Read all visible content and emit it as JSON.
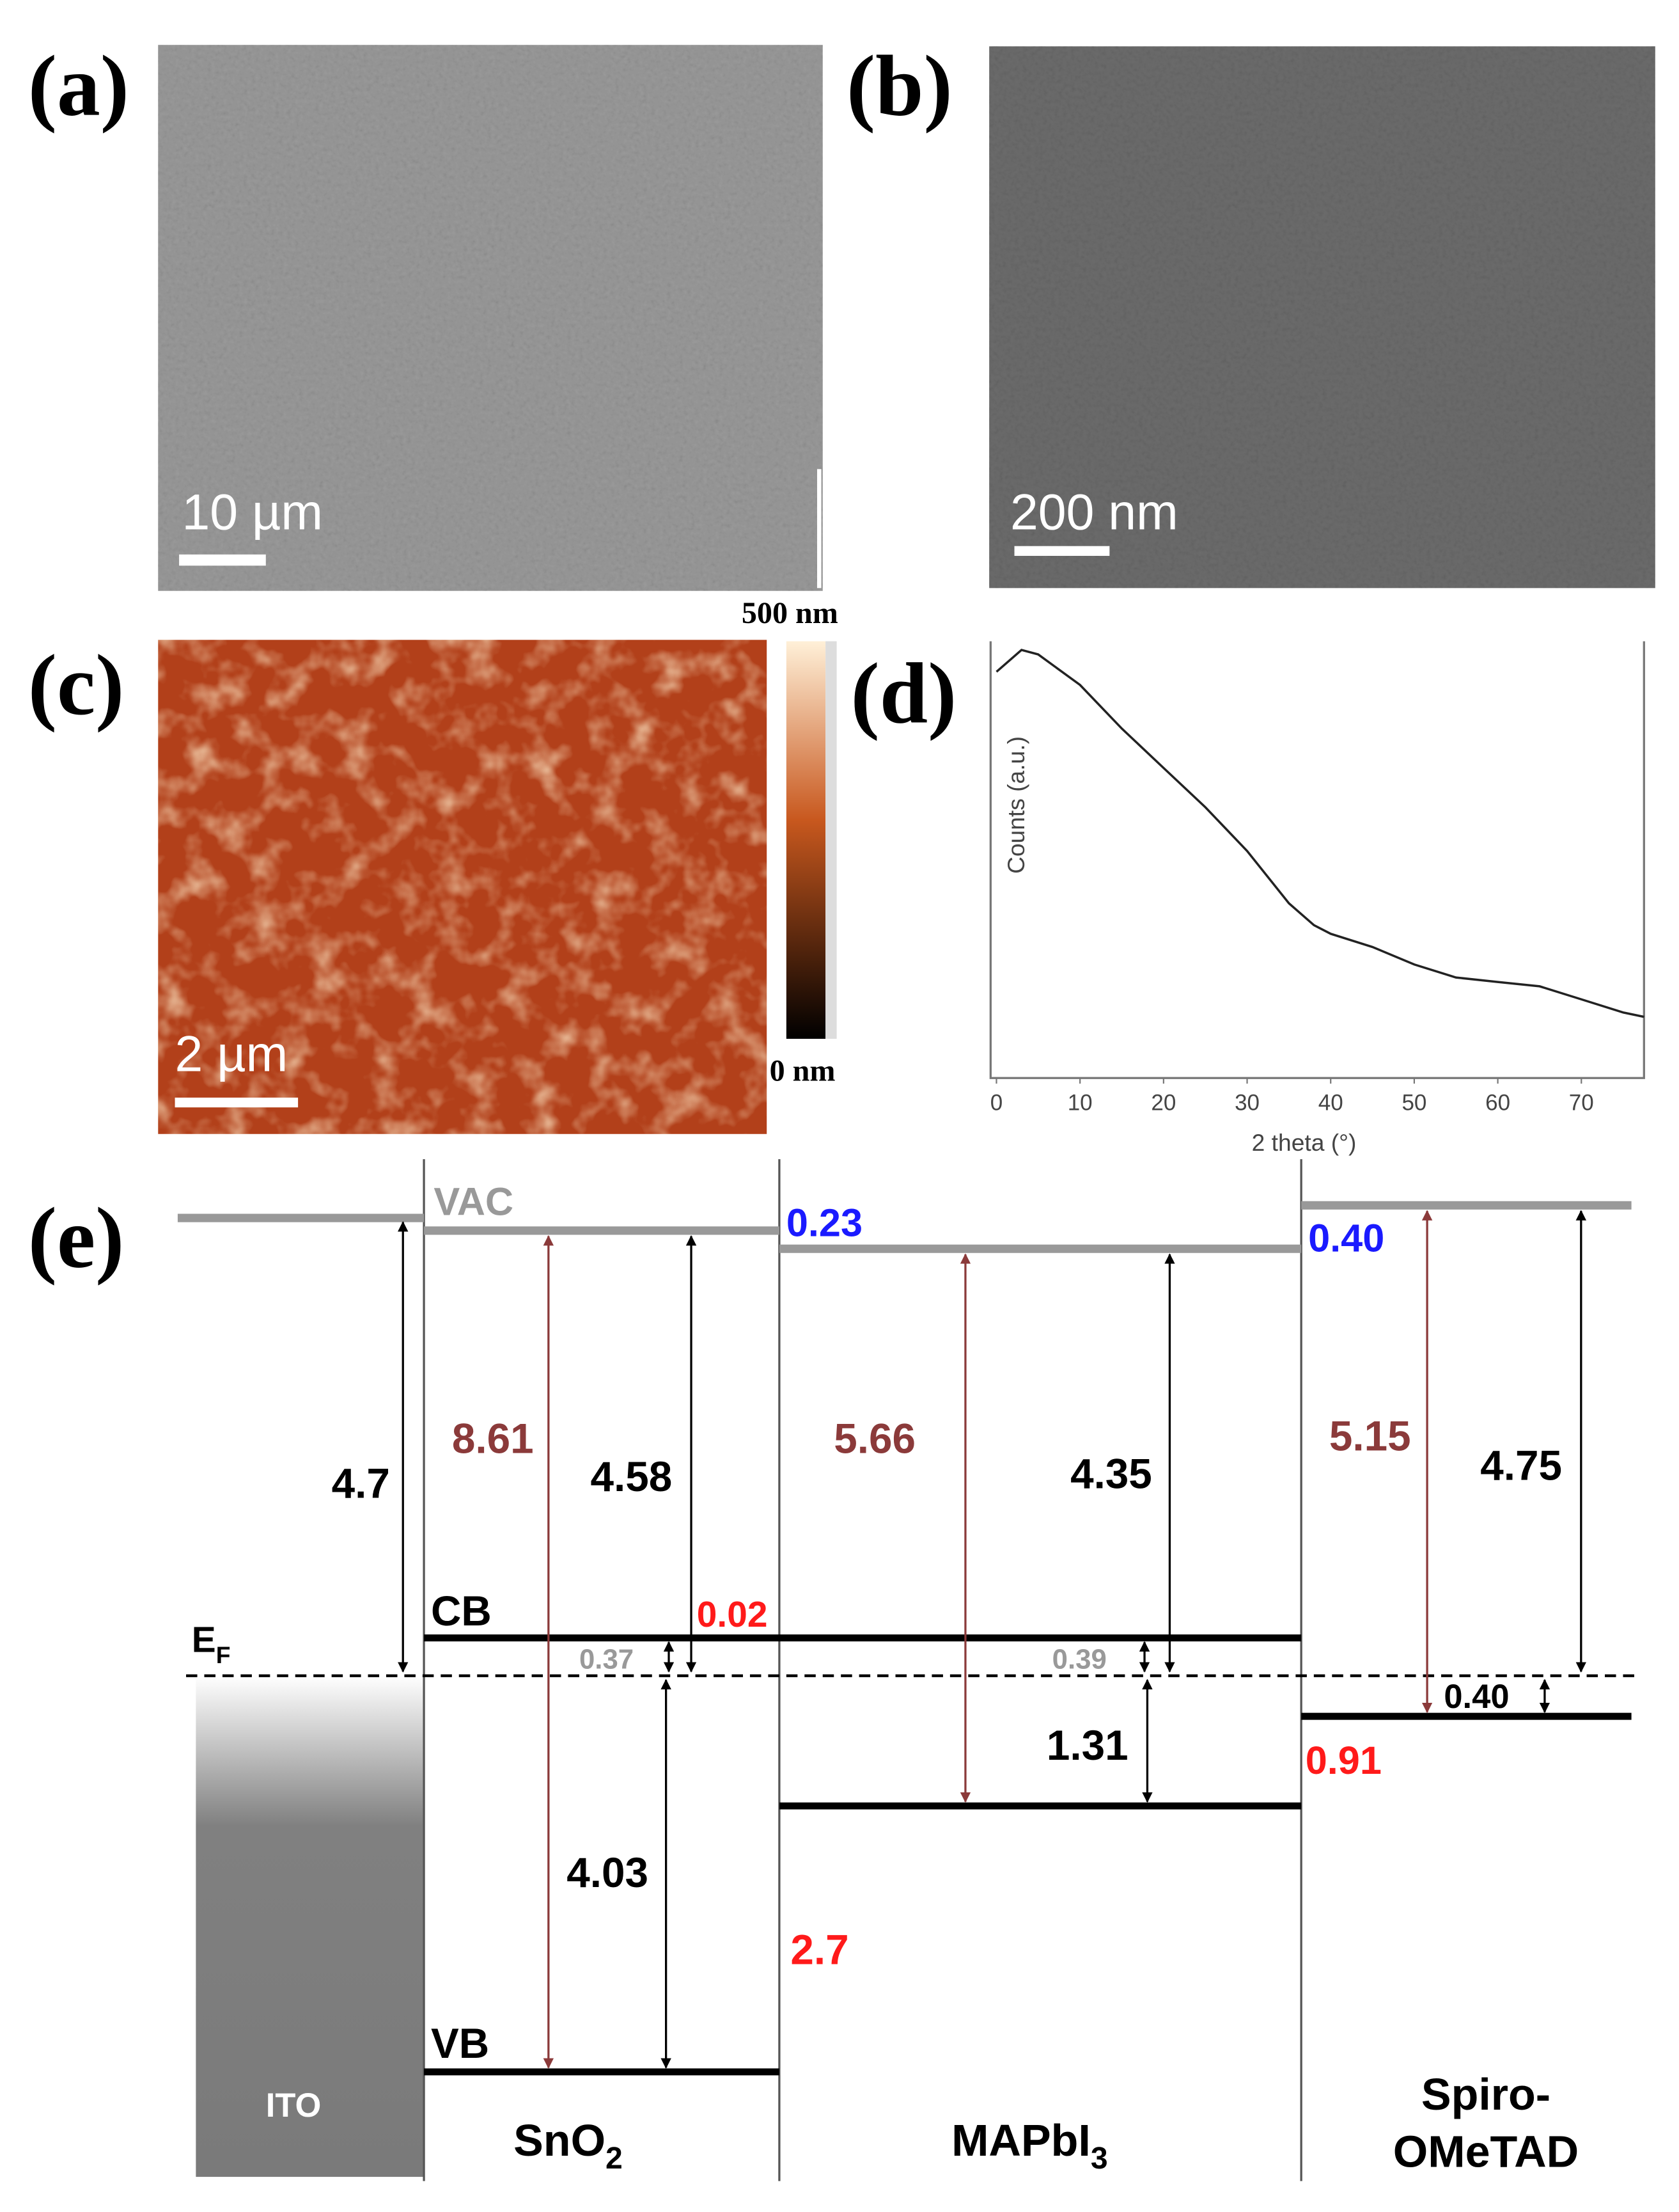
{
  "panels": {
    "a": {
      "label": "(a)",
      "scale_bar": "10 µm"
    },
    "b": {
      "label": "(b)",
      "scale_bar": "200 nm"
    },
    "c": {
      "label": "(c)",
      "scale_bar": "2 µm",
      "colorbar_max": "500 nm",
      "colorbar_min": "0 nm"
    },
    "d": {
      "label": "(d)"
    },
    "e": {
      "label": "(e)",
      "vac": "VAC",
      "fermi": {
        "main": "E",
        "sub": "F"
      },
      "cb": "CB",
      "vb": "VB",
      "ito": "ITO",
      "sno2": {
        "main": "SnO",
        "sub": "2"
      },
      "mapbi3": {
        "main": "MAPbI",
        "sub": "3"
      },
      "spiro": [
        "Spiro-",
        "OMeTAD"
      ],
      "annotations": [
        "4.7",
        "8.61",
        "4.58",
        "5.66",
        "4.35",
        "5.15",
        "4.75",
        "0.23",
        "0.40",
        "0.02",
        "0.37",
        "0.39",
        "0.40",
        "1.31",
        "0.91",
        "4.03",
        "2.7"
      ]
    }
  },
  "chart_data": {
    "type": "line",
    "xlabel": "2 theta (°)",
    "ylabel": "Counts (a.u.)",
    "color": "#222222",
    "x": [
      0,
      3,
      5,
      10,
      15,
      20,
      25,
      30,
      35,
      38,
      40,
      45,
      50,
      55,
      60,
      65,
      70,
      75,
      77.5
    ],
    "values": [
      0.93,
      0.98,
      0.97,
      0.9,
      0.8,
      0.71,
      0.62,
      0.52,
      0.4,
      0.35,
      0.33,
      0.3,
      0.26,
      0.23,
      0.22,
      0.21,
      0.18,
      0.15,
      0.14
    ],
    "xlim": [
      -0.7,
      77.5
    ],
    "ylim": [
      0,
      1
    ],
    "xticks": [
      0,
      10,
      20,
      30,
      40,
      50,
      60,
      70
    ]
  }
}
